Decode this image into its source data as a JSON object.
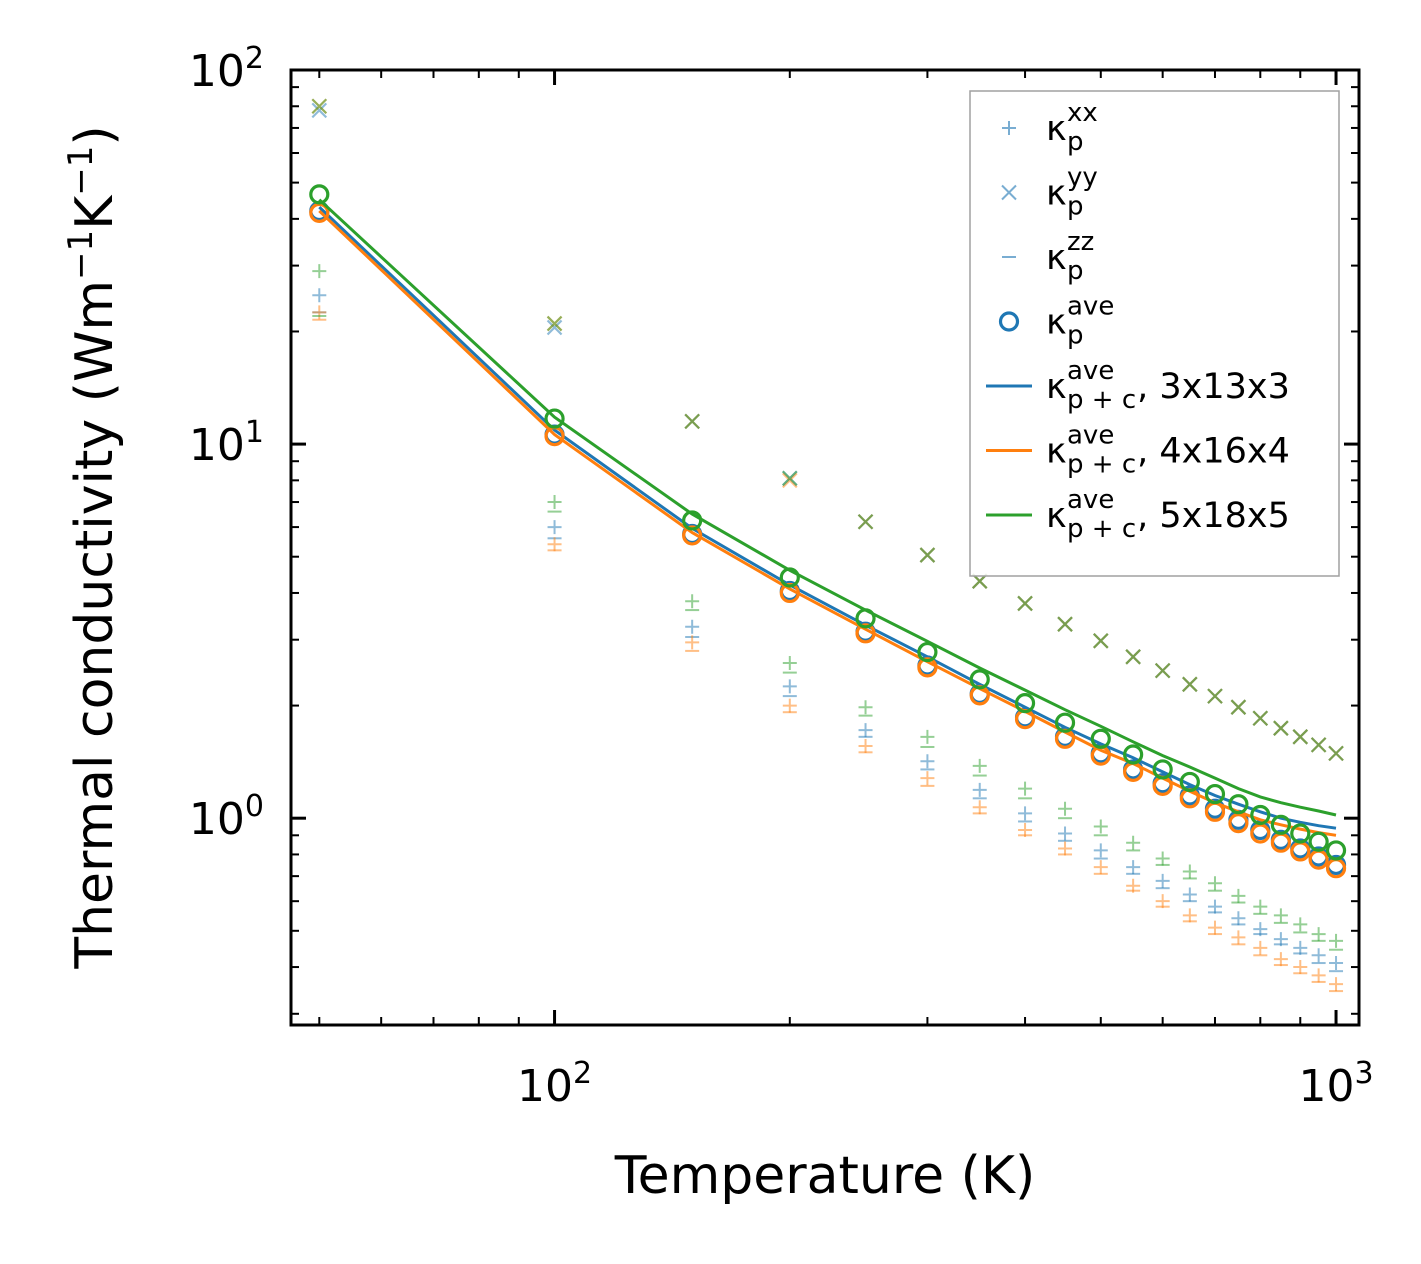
{
  "chart_data": {
    "type": "scatter",
    "title": "",
    "xlabel": "Temperature (K)",
    "ylabel": {
      "main": "Thermal conductivity (Wm",
      "sup1": "−1",
      "mid": "K",
      "sup2": "−1",
      "end": ")"
    },
    "xscale": "log",
    "yscale": "log",
    "xlim": [
      46,
      1070
    ],
    "ylim": [
      0.28,
      100
    ],
    "x_ticks": [
      {
        "value": 100,
        "base": "10",
        "exp": "2"
      },
      {
        "value": 1000,
        "base": "10",
        "exp": "3"
      }
    ],
    "y_ticks": [
      {
        "value": 1,
        "base": "10",
        "exp": "0"
      },
      {
        "value": 10,
        "base": "10",
        "exp": "1"
      },
      {
        "value": 100,
        "base": "10",
        "exp": "2"
      }
    ],
    "legend_position": "top-right",
    "x": [
      50,
      100,
      150,
      200,
      250,
      300,
      350,
      400,
      450,
      500,
      550,
      600,
      650,
      700,
      750,
      800,
      850,
      900,
      950,
      1000
    ],
    "series": [
      {
        "name": "3x13x3",
        "color": "#1f77b4",
        "ave": [
          42.0,
          10.6,
          5.75,
          4.05,
          3.15,
          2.56,
          2.15,
          1.86,
          1.65,
          1.49,
          1.35,
          1.24,
          1.15,
          1.06,
          0.99,
          0.93,
          0.875,
          0.83,
          0.79,
          0.75
        ],
        "xx": [
          25.0,
          6.0,
          3.25,
          2.25,
          1.72,
          1.42,
          1.19,
          1.03,
          0.91,
          0.82,
          0.74,
          0.68,
          0.625,
          0.58,
          0.54,
          0.505,
          0.475,
          0.45,
          0.43,
          0.41
        ],
        "yy": [
          78.0,
          20.5,
          11.5,
          8.1,
          6.2,
          5.05,
          4.3,
          3.75,
          3.3,
          2.98,
          2.7,
          2.48,
          2.28,
          2.12,
          1.98,
          1.85,
          1.74,
          1.65,
          1.57,
          1.49
        ],
        "zz": [
          22.5,
          5.6,
          3.05,
          2.12,
          1.65,
          1.35,
          1.13,
          0.98,
          0.87,
          0.78,
          0.71,
          0.65,
          0.6,
          0.56,
          0.52,
          0.49,
          0.46,
          0.435,
          0.41,
          0.39
        ],
        "pc": [
          43.0,
          10.9,
          5.95,
          4.2,
          3.28,
          2.7,
          2.28,
          1.98,
          1.75,
          1.58,
          1.45,
          1.33,
          1.23,
          1.15,
          1.09,
          1.04,
          1.0,
          0.975,
          0.955,
          0.94
        ]
      },
      {
        "name": "4x16x4",
        "color": "#ff7f0e",
        "ave": [
          41.5,
          10.5,
          5.7,
          4.0,
          3.12,
          2.53,
          2.13,
          1.84,
          1.63,
          1.47,
          1.33,
          1.22,
          1.13,
          1.04,
          0.97,
          0.91,
          0.86,
          0.815,
          0.775,
          0.735
        ],
        "xx": [
          22.5,
          5.4,
          2.95,
          2.0,
          1.56,
          1.28,
          1.07,
          0.93,
          0.83,
          0.74,
          0.66,
          0.6,
          0.55,
          0.51,
          0.48,
          0.45,
          0.42,
          0.4,
          0.38,
          0.36
        ],
        "yy": [
          80.0,
          21.0,
          11.5,
          8.0,
          6.2,
          5.05,
          4.3,
          3.75,
          3.3,
          2.98,
          2.7,
          2.48,
          2.28,
          2.12,
          1.98,
          1.85,
          1.74,
          1.65,
          1.57,
          1.49
        ],
        "zz": [
          21.5,
          5.2,
          2.8,
          1.92,
          1.5,
          1.22,
          1.03,
          0.9,
          0.8,
          0.71,
          0.64,
          0.58,
          0.53,
          0.49,
          0.46,
          0.43,
          0.405,
          0.385,
          0.365,
          0.345
        ],
        "pc": [
          42.0,
          10.6,
          5.8,
          4.1,
          3.2,
          2.62,
          2.22,
          1.93,
          1.7,
          1.52,
          1.4,
          1.28,
          1.18,
          1.1,
          1.04,
          0.99,
          0.96,
          0.935,
          0.915,
          0.9
        ]
      },
      {
        "name": "5x18x5",
        "color": "#2ca02c",
        "ave": [
          46.5,
          11.7,
          6.25,
          4.4,
          3.42,
          2.78,
          2.35,
          2.03,
          1.8,
          1.63,
          1.48,
          1.35,
          1.25,
          1.16,
          1.09,
          1.02,
          0.96,
          0.91,
          0.865,
          0.82
        ],
        "xx": [
          29.0,
          7.0,
          3.8,
          2.6,
          1.98,
          1.65,
          1.38,
          1.2,
          1.06,
          0.95,
          0.86,
          0.78,
          0.72,
          0.67,
          0.62,
          0.58,
          0.55,
          0.52,
          0.49,
          0.47
        ],
        "yy": [
          80.0,
          21.0,
          11.5,
          8.1,
          6.2,
          5.05,
          4.3,
          3.75,
          3.3,
          2.98,
          2.7,
          2.48,
          2.28,
          2.12,
          1.98,
          1.85,
          1.74,
          1.65,
          1.57,
          1.49
        ],
        "zz": [
          22.0,
          6.6,
          3.6,
          2.45,
          1.88,
          1.55,
          1.3,
          1.13,
          1.0,
          0.9,
          0.82,
          0.75,
          0.69,
          0.64,
          0.595,
          0.555,
          0.525,
          0.495,
          0.47,
          0.445
        ],
        "pc": [
          45.0,
          11.8,
          6.5,
          4.6,
          3.6,
          2.97,
          2.52,
          2.2,
          1.95,
          1.76,
          1.6,
          1.47,
          1.37,
          1.28,
          1.2,
          1.14,
          1.1,
          1.07,
          1.045,
          1.02
        ]
      }
    ],
    "legend": [
      {
        "kind": "plus",
        "sym": "κ",
        "sub": "p",
        "sup": "xx",
        "tail": "",
        "color": "#1f77b4"
      },
      {
        "kind": "cross",
        "sym": "κ",
        "sub": "p",
        "sup": "yy",
        "tail": "",
        "color": "#1f77b4"
      },
      {
        "kind": "dash",
        "sym": "κ",
        "sub": "p",
        "sup": "zz",
        "tail": "",
        "color": "#1f77b4"
      },
      {
        "kind": "circle",
        "sym": "κ",
        "sub": "p",
        "sup": "ave",
        "tail": "",
        "color": "#1f77b4"
      },
      {
        "kind": "line",
        "sym": "κ",
        "sub": "p + c",
        "sup": "ave",
        "tail": ", 3x13x3",
        "color": "#1f77b4"
      },
      {
        "kind": "line",
        "sym": "κ",
        "sub": "p + c",
        "sup": "ave",
        "tail": ", 4x16x4",
        "color": "#ff7f0e"
      },
      {
        "kind": "line",
        "sym": "κ",
        "sub": "p + c",
        "sup": "ave",
        "tail": ", 5x18x5",
        "color": "#2ca02c"
      }
    ]
  }
}
